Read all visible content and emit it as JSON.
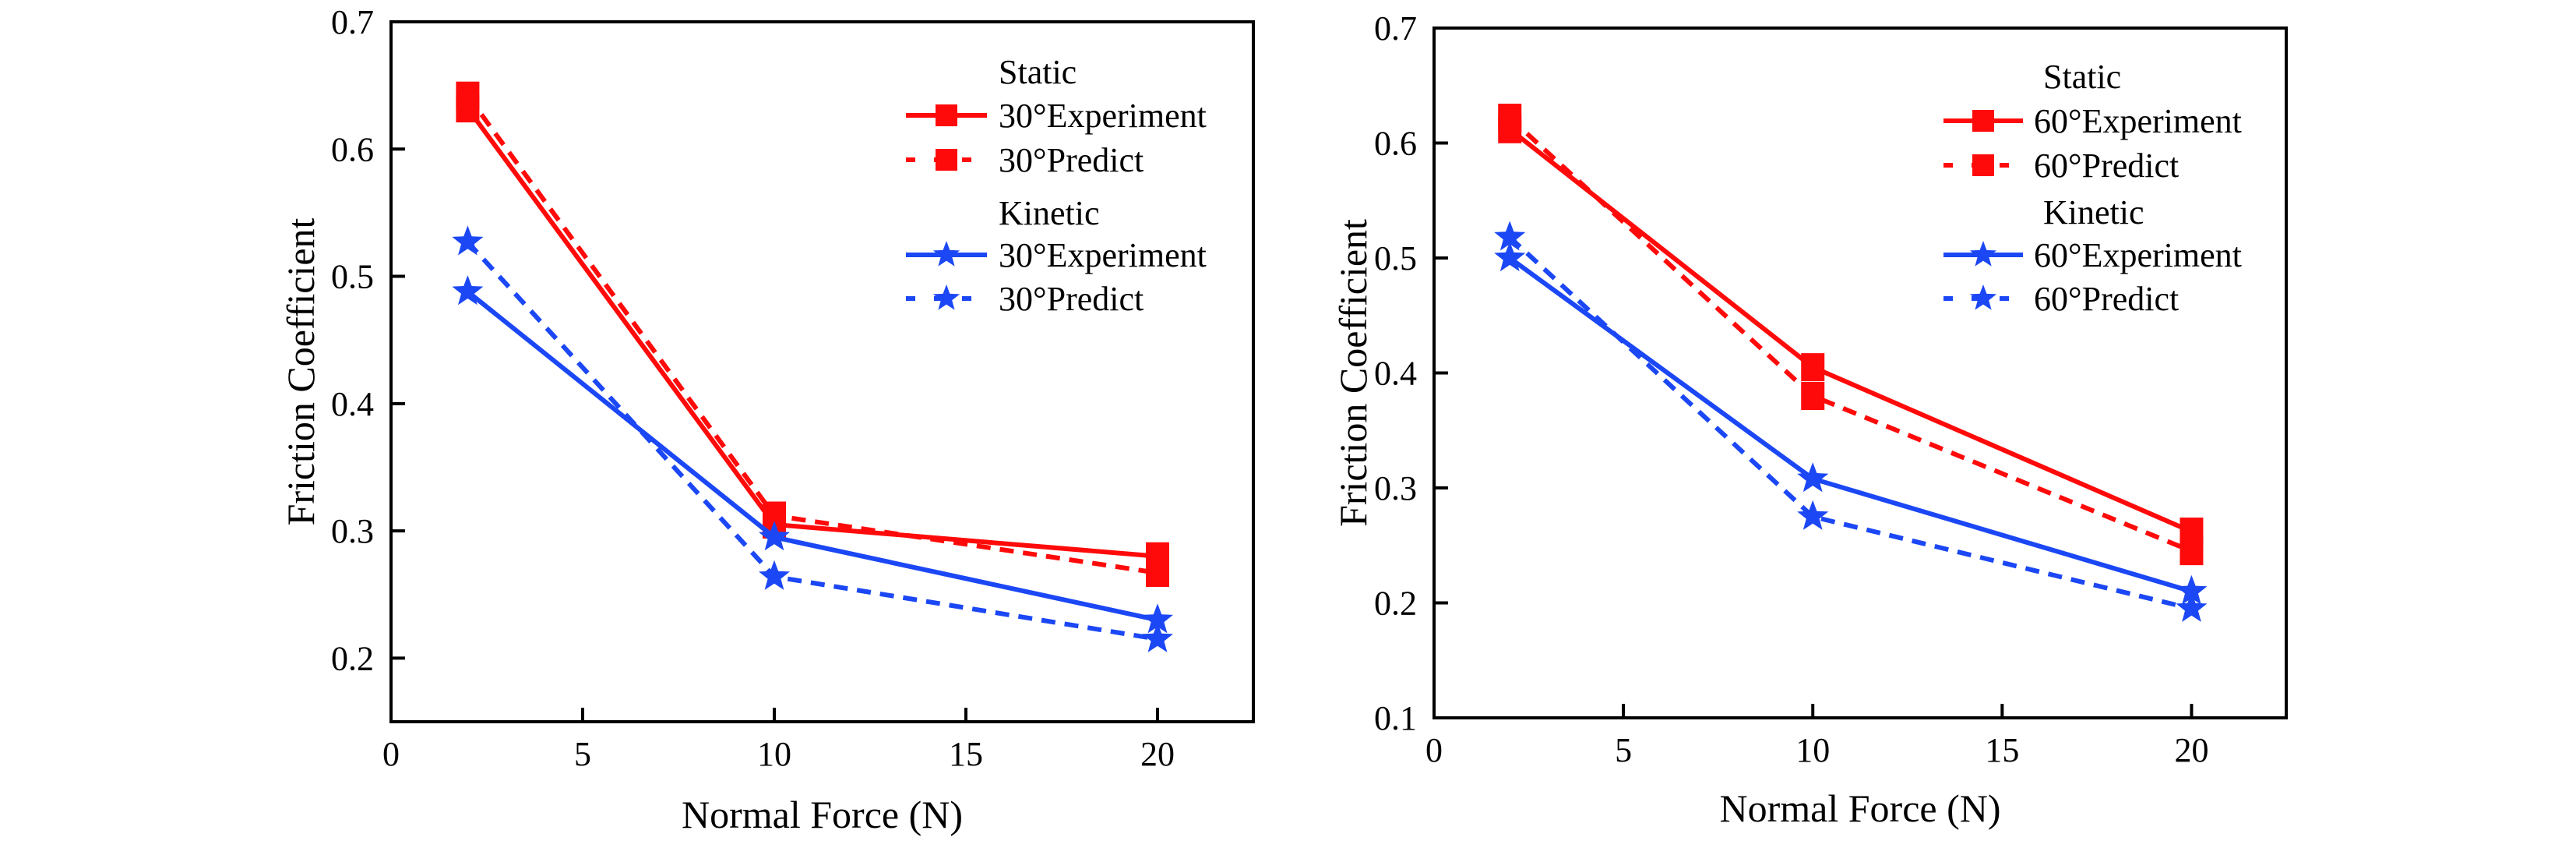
{
  "chart_data": [
    {
      "type": "line",
      "xlabel": "Normal Force (N)",
      "ylabel": "Friction Coefficient",
      "xlim": [
        0,
        22.5
      ],
      "ylim": [
        0.15,
        0.7
      ],
      "xticks": [
        0,
        5,
        10,
        15,
        20
      ],
      "xtick_labels": [
        "0",
        "5",
        "10",
        "15",
        "20"
      ],
      "yticks": [
        0.2,
        0.3,
        0.4,
        0.5,
        0.6,
        0.7
      ],
      "ytick_labels": [
        "0.2",
        "0.3",
        "0.4",
        "0.5",
        "0.6",
        "0.7"
      ],
      "grid": false,
      "legend_position": "top-right",
      "legend_groups": [
        {
          "title": "Static",
          "entries": [
            0,
            1
          ]
        },
        {
          "title": "Kinetic",
          "entries": [
            2,
            3
          ]
        }
      ],
      "x": [
        2,
        10,
        20
      ],
      "series": [
        {
          "name": "30°Experiment",
          "group": "Static",
          "color": "#ff0a0a",
          "style": "solid",
          "marker": "square",
          "values": [
            0.632,
            0.305,
            0.28
          ]
        },
        {
          "name": "30°Predict",
          "group": "Static",
          "color": "#ff0a0a",
          "style": "dashed",
          "marker": "square",
          "values": [
            0.642,
            0.312,
            0.267
          ]
        },
        {
          "name": "30°Experiment",
          "group": "Kinetic",
          "color": "#1b47f5",
          "style": "solid",
          "marker": "star",
          "values": [
            0.488,
            0.295,
            0.23
          ]
        },
        {
          "name": "30°Predict",
          "group": "Kinetic",
          "color": "#1b47f5",
          "style": "dashed",
          "marker": "star",
          "values": [
            0.527,
            0.264,
            0.215
          ]
        }
      ]
    },
    {
      "type": "line",
      "xlabel": "Normal Force (N)",
      "ylabel": "Friction Coefficient",
      "xlim": [
        0,
        22.5
      ],
      "ylim": [
        0.1,
        0.7
      ],
      "xticks": [
        0,
        5,
        10,
        15,
        20
      ],
      "xtick_labels": [
        "0",
        "5",
        "10",
        "15",
        "20"
      ],
      "yticks": [
        0.1,
        0.2,
        0.3,
        0.4,
        0.5,
        0.6,
        0.7
      ],
      "ytick_labels": [
        "0.1",
        "0.2",
        "0.3",
        "0.4",
        "0.5",
        "0.6",
        "0.7"
      ],
      "grid": false,
      "legend_position": "top-right",
      "legend_groups": [
        {
          "title": "Static",
          "entries": [
            0,
            1
          ]
        },
        {
          "title": "Kinetic",
          "entries": [
            2,
            3
          ]
        }
      ],
      "x": [
        2,
        10,
        20
      ],
      "series": [
        {
          "name": "60°Experiment",
          "group": "Static",
          "color": "#ff0a0a",
          "style": "solid",
          "marker": "square",
          "values": [
            0.612,
            0.405,
            0.262
          ]
        },
        {
          "name": "60°Predict",
          "group": "Static",
          "color": "#ff0a0a",
          "style": "dashed",
          "marker": "square",
          "values": [
            0.622,
            0.38,
            0.245
          ]
        },
        {
          "name": "60°Experiment",
          "group": "Kinetic",
          "color": "#1b47f5",
          "style": "solid",
          "marker": "star",
          "values": [
            0.5,
            0.308,
            0.21
          ]
        },
        {
          "name": "60°Predict",
          "group": "Kinetic",
          "color": "#1b47f5",
          "style": "dashed",
          "marker": "star",
          "values": [
            0.518,
            0.275,
            0.195
          ]
        }
      ]
    }
  ]
}
